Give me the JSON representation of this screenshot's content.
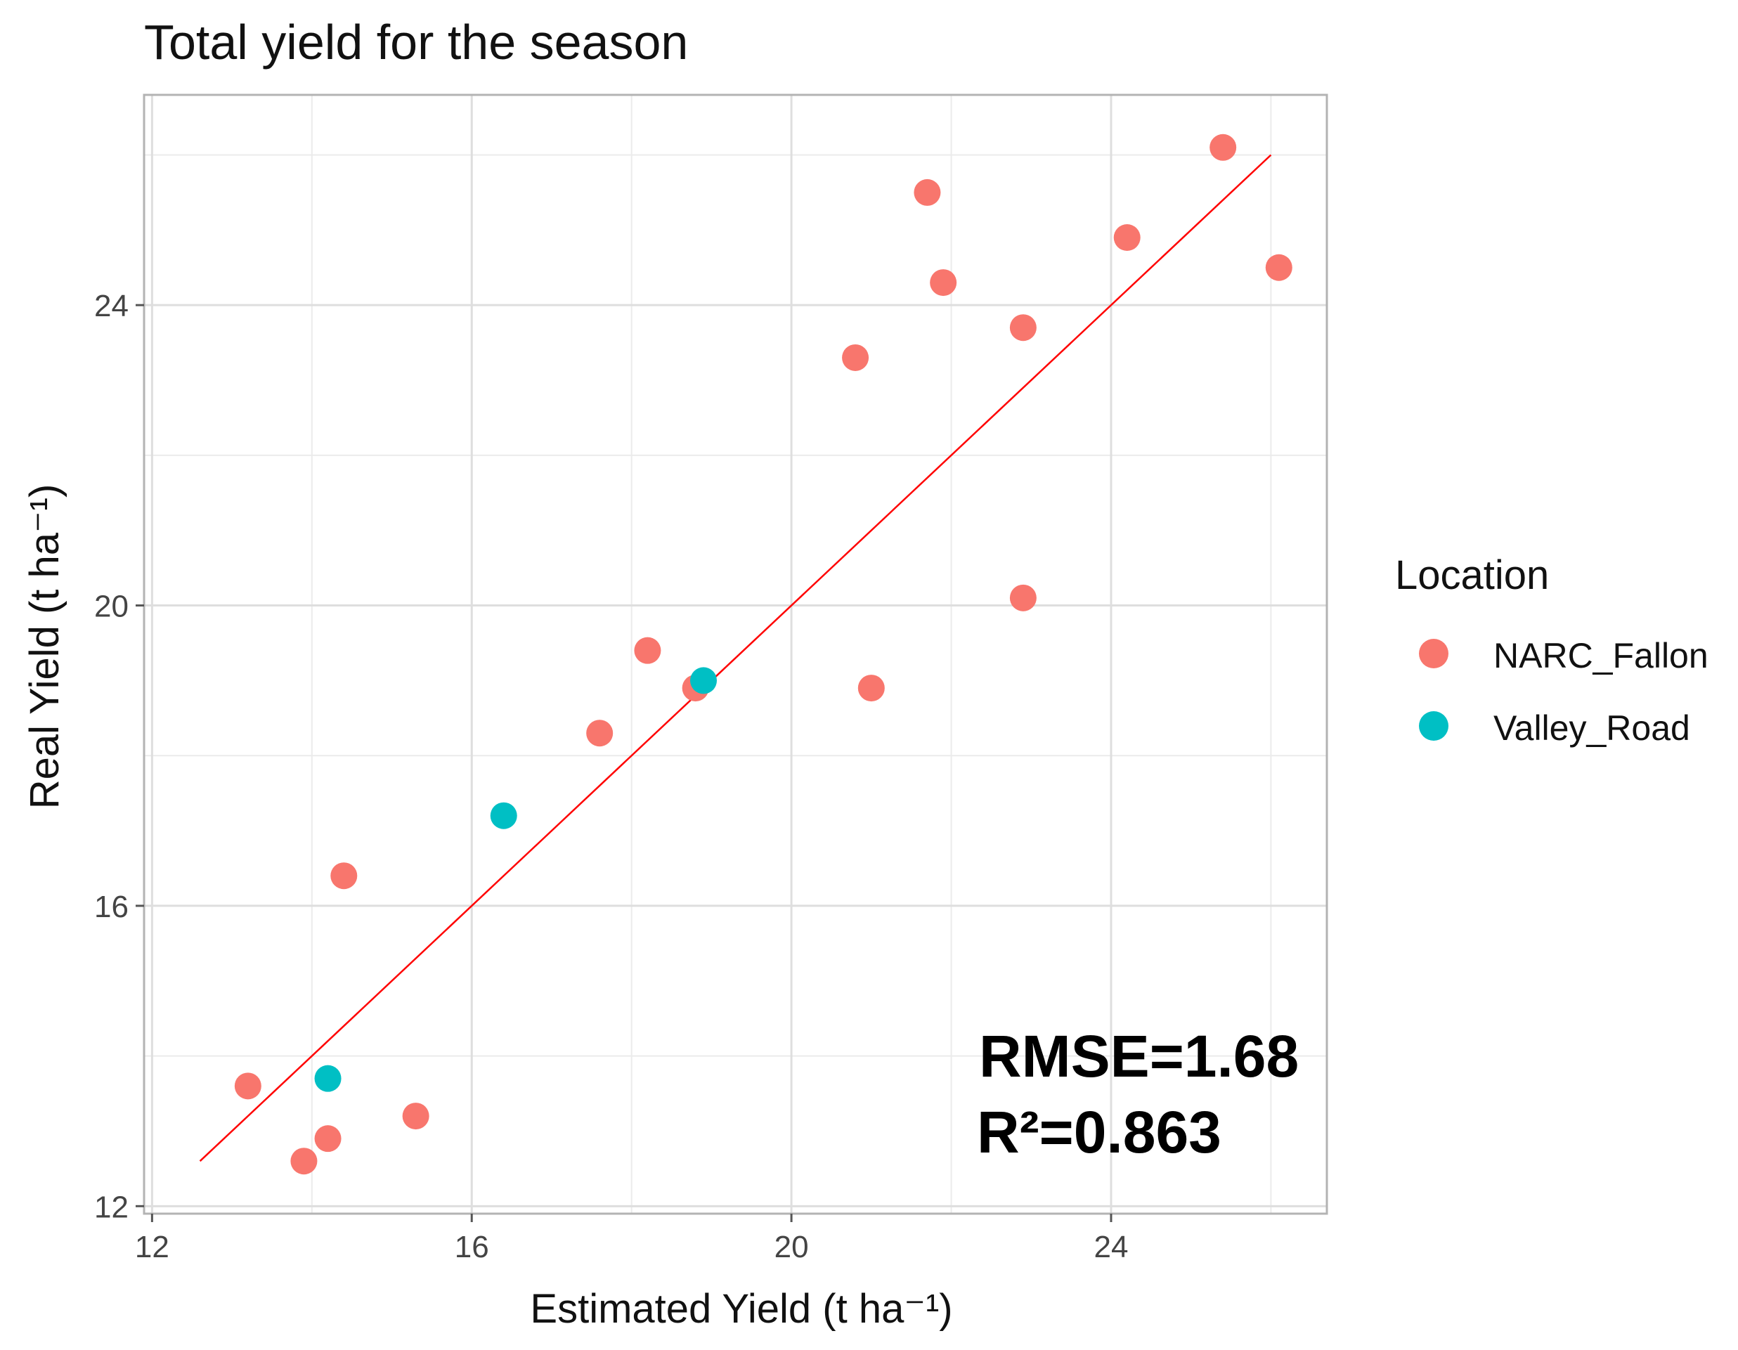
{
  "chart_data": {
    "type": "scatter",
    "title": "Total yield for the season",
    "xlabel": "Estimated Yield (t ha⁻¹)",
    "ylabel": "Real Yield (t ha⁻¹)",
    "xlim": [
      11.9,
      26.7
    ],
    "ylim": [
      11.9,
      26.8
    ],
    "x_ticks": [
      12,
      16,
      20,
      24
    ],
    "y_ticks": [
      12,
      16,
      20,
      24
    ],
    "grid": true,
    "legend": {
      "title": "Location",
      "position": "right"
    },
    "series": [
      {
        "name": "NARC_Fallon",
        "color": "#F8766D",
        "points": [
          {
            "x": 13.2,
            "y": 13.6
          },
          {
            "x": 13.9,
            "y": 12.6
          },
          {
            "x": 14.2,
            "y": 12.9
          },
          {
            "x": 14.4,
            "y": 16.4
          },
          {
            "x": 15.3,
            "y": 13.2
          },
          {
            "x": 17.6,
            "y": 18.3
          },
          {
            "x": 18.2,
            "y": 19.4
          },
          {
            "x": 18.8,
            "y": 18.9
          },
          {
            "x": 20.8,
            "y": 23.3
          },
          {
            "x": 21.0,
            "y": 18.9
          },
          {
            "x": 21.7,
            "y": 25.5
          },
          {
            "x": 21.9,
            "y": 24.3
          },
          {
            "x": 22.9,
            "y": 23.7
          },
          {
            "x": 22.9,
            "y": 20.1
          },
          {
            "x": 24.2,
            "y": 24.9
          },
          {
            "x": 25.4,
            "y": 26.1
          },
          {
            "x": 26.1,
            "y": 24.5
          }
        ]
      },
      {
        "name": "Valley_Road",
        "color": "#00BFC4",
        "points": [
          {
            "x": 14.2,
            "y": 13.7
          },
          {
            "x": 16.4,
            "y": 17.2
          },
          {
            "x": 18.9,
            "y": 19.0
          }
        ]
      }
    ],
    "fit_line": {
      "color": "#FF0000",
      "x": [
        12.6,
        26.0
      ],
      "y": [
        12.6,
        26.0
      ]
    },
    "annotations": {
      "rmse": "RMSE=1.68",
      "r2": "R²=0.863"
    }
  }
}
